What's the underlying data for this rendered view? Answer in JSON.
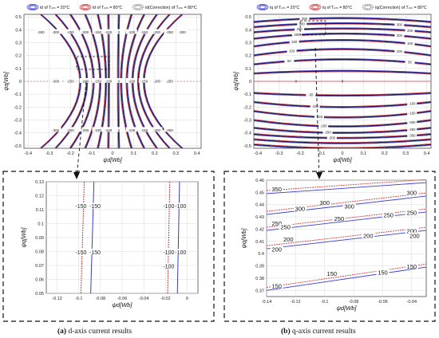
{
  "panels": [
    {
      "id": "a",
      "caption_letter": "(a)",
      "caption_text": " d-axis current results",
      "legend": [
        "id of Tₚₘ = 20°C",
        "id of Tₚₘ = 80°C",
        "id(Correction) of Tₚₘ = 80°C"
      ]
    },
    {
      "id": "b",
      "caption_letter": "(b)",
      "caption_text": " q-axis current results",
      "legend": [
        "iq of Tₚₘ = 20°C",
        "iq of Tₚₘ = 80°C",
        "iq(Correction) of Tₚₘ = 80°C"
      ]
    }
  ],
  "colors": {
    "t20": "#3b3bd6",
    "t80": "#d23c3c",
    "corr": "#555555",
    "dark": "#1a1a4e"
  },
  "chart_data": [
    {
      "type": "line",
      "panel": "a-main",
      "xlabel": "ψd[Wb]",
      "ylabel": "ψq[Wb]",
      "xlim": [
        -0.42,
        0.42
      ],
      "ylim": [
        -0.52,
        0.52
      ],
      "xticks": [
        "-0.4",
        "-0.3",
        "-0.2",
        "-0.1",
        "0",
        "0.1",
        "0.2",
        "0.3",
        "0.4"
      ],
      "yticks": [
        "0.5",
        "0.4",
        "0.3",
        "0.2",
        "0.1",
        "0",
        "-0.1",
        "-0.2",
        "-0.3",
        "-0.4",
        "-0.5"
      ],
      "contour_d_values": [
        -0.34,
        -0.27,
        -0.2,
        -0.13,
        -0.07,
        -0.02,
        0.03,
        0.09,
        0.15,
        0.21,
        0.27,
        0.33
      ],
      "contour_labels_top": [
        "-350",
        "-300",
        "-250",
        "-200",
        "-150",
        "-100",
        "0",
        "-100",
        "-150",
        "-200",
        "-250",
        "-300"
      ],
      "contour_labels_mid": [
        "-300",
        "-250",
        "-200",
        "-150",
        "-100",
        "0",
        "-100",
        "-150",
        "-200",
        "-250"
      ],
      "contour_labels_bot": [
        "-300",
        "-250",
        "-200",
        "-150",
        "-100",
        "0",
        "-100",
        "-150",
        "-200",
        "-250"
      ],
      "zoom_box": {
        "x": [
          -0.17,
          -0.03
        ],
        "y": [
          0.05,
          0.13
        ]
      },
      "grid": true
    },
    {
      "type": "line",
      "panel": "a-zoom",
      "xlabel": "ψd[Wb]",
      "ylabel": "ψq[Wb]",
      "xlim": [
        -0.13,
        0.01
      ],
      "ylim": [
        0.05,
        0.13
      ],
      "xticks": [
        "-0.12",
        "-0.1",
        "-0.08",
        "-0.06",
        "-0.04",
        "-0.02",
        "0"
      ],
      "yticks": [
        "0.13",
        "0.12",
        "0.11",
        "0.1",
        "0.09",
        "0.08",
        "0.07",
        "0.06",
        "0.05"
      ],
      "series": [
        {
          "label": "-150",
          "x_top": -0.095,
          "x_bot": -0.098,
          "color": "t80"
        },
        {
          "label": "-150",
          "x_top": -0.086,
          "x_bot": -0.089,
          "color": "t20"
        },
        {
          "label": "-100",
          "x_top": -0.016,
          "x_bot": -0.018,
          "color": "t80"
        },
        {
          "label": "-100",
          "x_top": -0.007,
          "x_bot": -0.009,
          "color": "t20"
        }
      ],
      "labels_top": [
        "-150",
        "-150",
        "-100",
        "-100"
      ],
      "labels_mid": [
        "-150",
        "-150",
        "-100",
        "-100"
      ],
      "labels_low": [
        "-100"
      ],
      "grid": true
    },
    {
      "type": "line",
      "panel": "b-main",
      "xlabel": "ψd[Wb]",
      "ylabel": "ψq[Wb]",
      "xlim": [
        -0.42,
        0.42
      ],
      "ylim": [
        -0.52,
        0.52
      ],
      "xticks": [
        "-0.4",
        "-0.3",
        "-0.2",
        "-0.1",
        "0",
        "0.1",
        "0.2",
        "0.3",
        "0.4"
      ],
      "yticks": [
        "0.5",
        "0.4",
        "0.3",
        "0.2",
        "0.1",
        "0",
        "-0.1",
        "-0.2",
        "-0.3",
        "-0.4",
        "-0.5"
      ],
      "contour_levels_top": [
        {
          "y_edge": 0.46,
          "y_mid": 0.49
        },
        {
          "y_edge": 0.42,
          "y_mid": 0.45
        },
        {
          "y_edge": 0.38,
          "y_mid": 0.41
        },
        {
          "y_edge": 0.33,
          "y_mid": 0.37
        },
        {
          "y_edge": 0.27,
          "y_mid": 0.32
        },
        {
          "y_edge": 0.2,
          "y_mid": 0.25
        },
        {
          "y_edge": 0.13,
          "y_mid": 0.17
        },
        {
          "y_edge": 0.06,
          "y_mid": 0.08
        }
      ],
      "labels_top": [
        "350",
        "300",
        "250",
        "200",
        "150",
        "100",
        "50"
      ],
      "labels_right": [
        "300",
        "250",
        "200",
        "150",
        "100",
        "50"
      ],
      "labels_bottom": [
        "-50",
        "-100",
        "-150",
        "-200",
        "-250",
        "-300"
      ],
      "labels_bottom_right": [
        "-100",
        "-150",
        "-200",
        "-250",
        "-300"
      ],
      "zero_label": "0",
      "zoom_box": {
        "x": [
          -0.14,
          -0.04
        ],
        "y": [
          0.37,
          0.46
        ]
      },
      "grid": true
    },
    {
      "type": "line",
      "panel": "b-zoom",
      "xlabel": "ψd[Wb]",
      "ylabel": "ψq[Wb]",
      "xlim": [
        -0.14,
        -0.03
      ],
      "ylim": [
        0.365,
        0.46
      ],
      "xticks": [
        "-0.14",
        "-0.12",
        "-0.1",
        "-0.08",
        "-0.06",
        "-0.04"
      ],
      "yticks": [
        "0.46",
        "0.45",
        "0.44",
        "0.43",
        "0.42",
        "0.41",
        "0.4",
        "0.39",
        "0.38",
        "0.37"
      ],
      "levels": [
        {
          "value": "350",
          "y_left": 0.449,
          "y_right": 0.458
        },
        {
          "value": "300",
          "y_left": 0.432,
          "y_right": 0.447
        },
        {
          "value": "250",
          "y_left": 0.419,
          "y_right": 0.434
        },
        {
          "value": "200",
          "y_left": 0.404,
          "y_right": 0.419
        },
        {
          "value": "150",
          "y_left": 0.37,
          "y_right": 0.389
        }
      ],
      "labels": [
        {
          "text": "350",
          "x": -0.133,
          "y": 0.452
        },
        {
          "text": "300",
          "x": -0.1,
          "y": 0.441
        },
        {
          "text": "300",
          "x": -0.117,
          "y": 0.436
        },
        {
          "text": "300",
          "x": -0.083,
          "y": 0.438
        },
        {
          "text": "300",
          "x": -0.04,
          "y": 0.449
        },
        {
          "text": "250",
          "x": -0.133,
          "y": 0.424
        },
        {
          "text": "250",
          "x": -0.09,
          "y": 0.428
        },
        {
          "text": "250",
          "x": -0.056,
          "y": 0.431
        },
        {
          "text": "250",
          "x": -0.04,
          "y": 0.433
        },
        {
          "text": "250",
          "x": -0.127,
          "y": 0.421
        },
        {
          "text": "200",
          "x": -0.125,
          "y": 0.411
        },
        {
          "text": "200",
          "x": -0.07,
          "y": 0.414
        },
        {
          "text": "200",
          "x": -0.04,
          "y": 0.418
        },
        {
          "text": "200",
          "x": -0.133,
          "y": 0.403
        },
        {
          "text": "200",
          "x": -0.038,
          "y": 0.414
        },
        {
          "text": "150",
          "x": -0.133,
          "y": 0.373
        },
        {
          "text": "150",
          "x": -0.095,
          "y": 0.383
        },
        {
          "text": "150",
          "x": -0.04,
          "y": 0.389
        },
        {
          "text": "150",
          "x": -0.06,
          "y": 0.384
        }
      ],
      "grid": true
    }
  ]
}
